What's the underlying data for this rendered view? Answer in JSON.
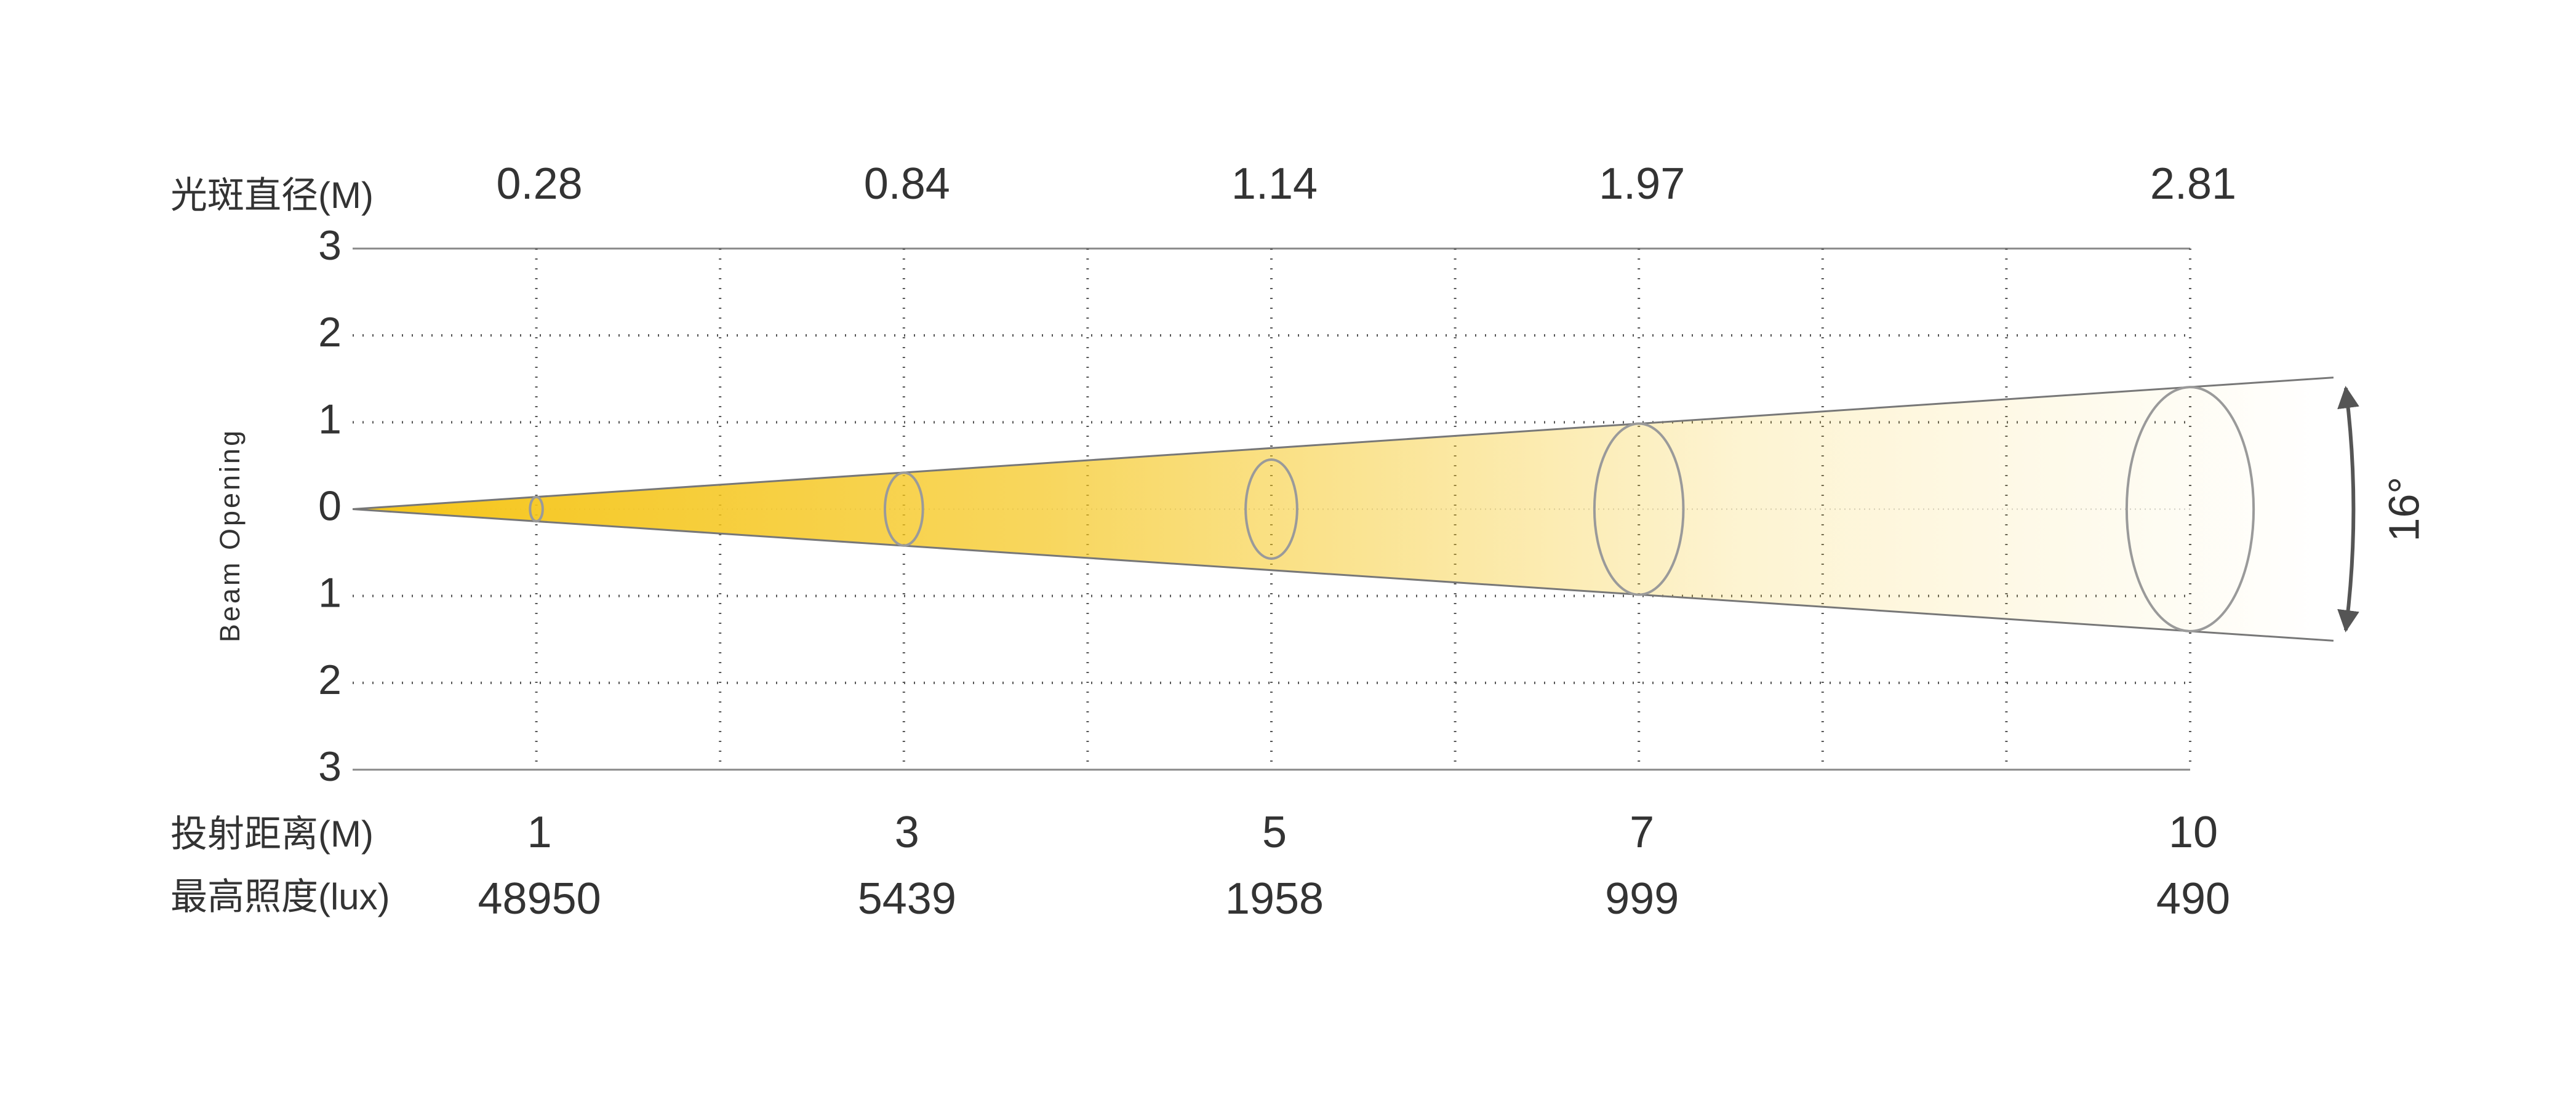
{
  "chart_data": {
    "type": "beam",
    "y_label": "Beam Opening",
    "x_label": "投射距离(M)",
    "x": [
      1,
      3,
      5,
      7,
      10
    ],
    "series": [
      {
        "name": "光斑直径(M)",
        "color": "#9a9a9a",
        "values": [
          0.28,
          0.84,
          1.14,
          1.97,
          2.81
        ]
      },
      {
        "name": "最高照度(lux)",
        "values": [
          48950,
          5439,
          1958,
          999,
          490
        ]
      }
    ],
    "xlim": [
      0,
      10
    ],
    "xticks": [
      1,
      2,
      3,
      4,
      5,
      6,
      7,
      8,
      9,
      10
    ],
    "ylim": [
      -3,
      3
    ],
    "yticks": [
      {
        "value": -3,
        "label": "3"
      },
      {
        "value": -2,
        "label": "2"
      },
      {
        "value": -1,
        "label": "1"
      },
      0,
      1,
      2,
      3
    ],
    "beam_angle": {
      "value": 16,
      "label": "16°"
    },
    "beam_color": "#f5c518",
    "grid": true
  }
}
